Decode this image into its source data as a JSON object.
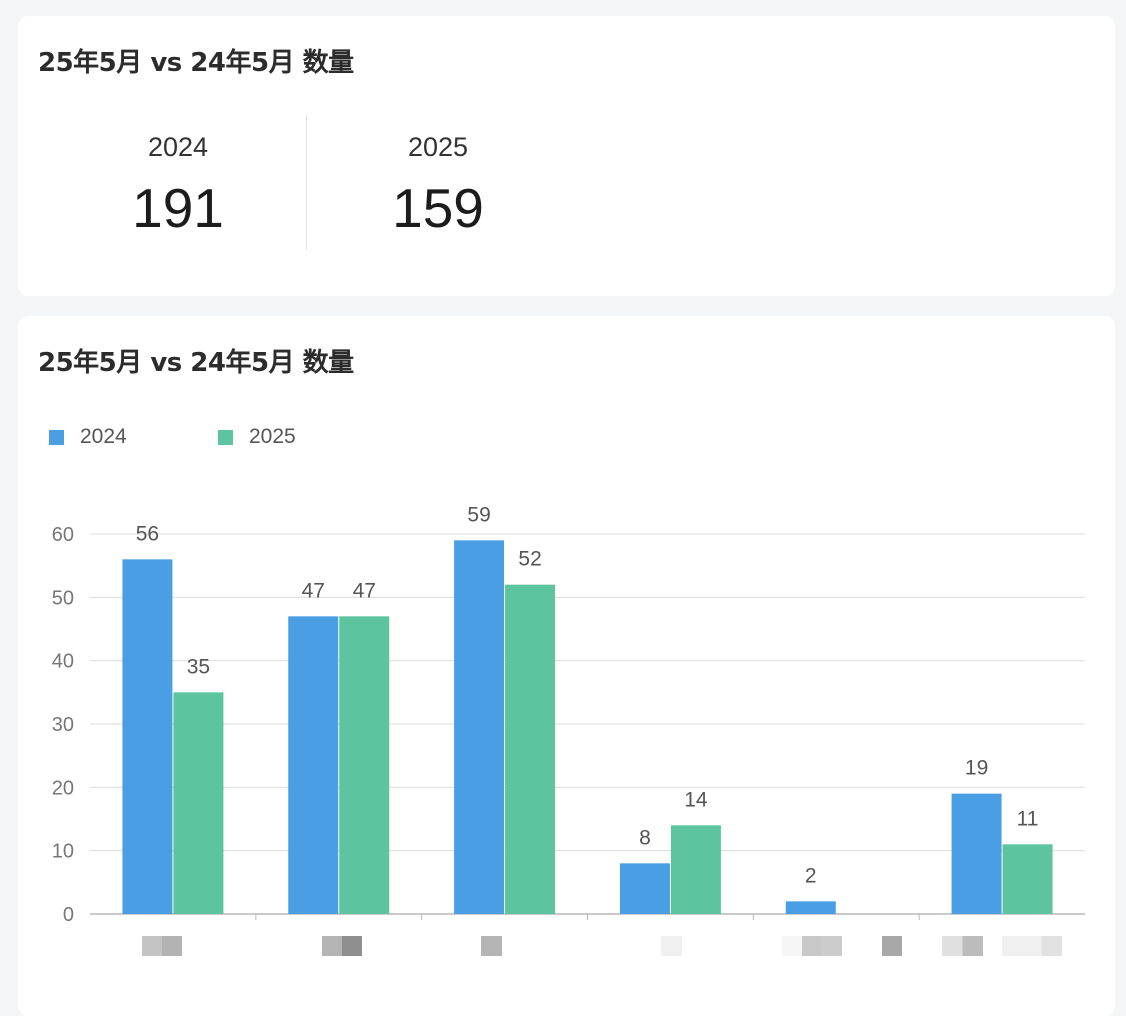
{
  "summary_card": {
    "title": "25年5月 vs 24年5月 数量",
    "stats": [
      {
        "label": "2024",
        "value": "191"
      },
      {
        "label": "2025",
        "value": "159"
      }
    ]
  },
  "chart_card": {
    "title": "25年5月 vs 24年5月 数量"
  },
  "colors": {
    "series_2024": "#4a9ee3",
    "series_2025": "#5cc49e"
  },
  "chart_data": {
    "type": "bar",
    "categories": [
      "",
      "",
      "",
      "",
      "",
      ""
    ],
    "series": [
      {
        "name": "2024",
        "values": [
          56,
          47,
          59,
          8,
          2,
          19
        ]
      },
      {
        "name": "2025",
        "values": [
          35,
          47,
          52,
          14,
          0,
          11
        ]
      }
    ],
    "data_labels_2025": [
      "35",
      "47",
      "52",
      "14",
      "",
      "11"
    ],
    "ylim": [
      0,
      60
    ],
    "yticks": [
      0,
      10,
      20,
      30,
      40,
      50,
      60
    ],
    "grid": true,
    "legend_position": "top-left",
    "xlabel": "",
    "ylabel": ""
  }
}
